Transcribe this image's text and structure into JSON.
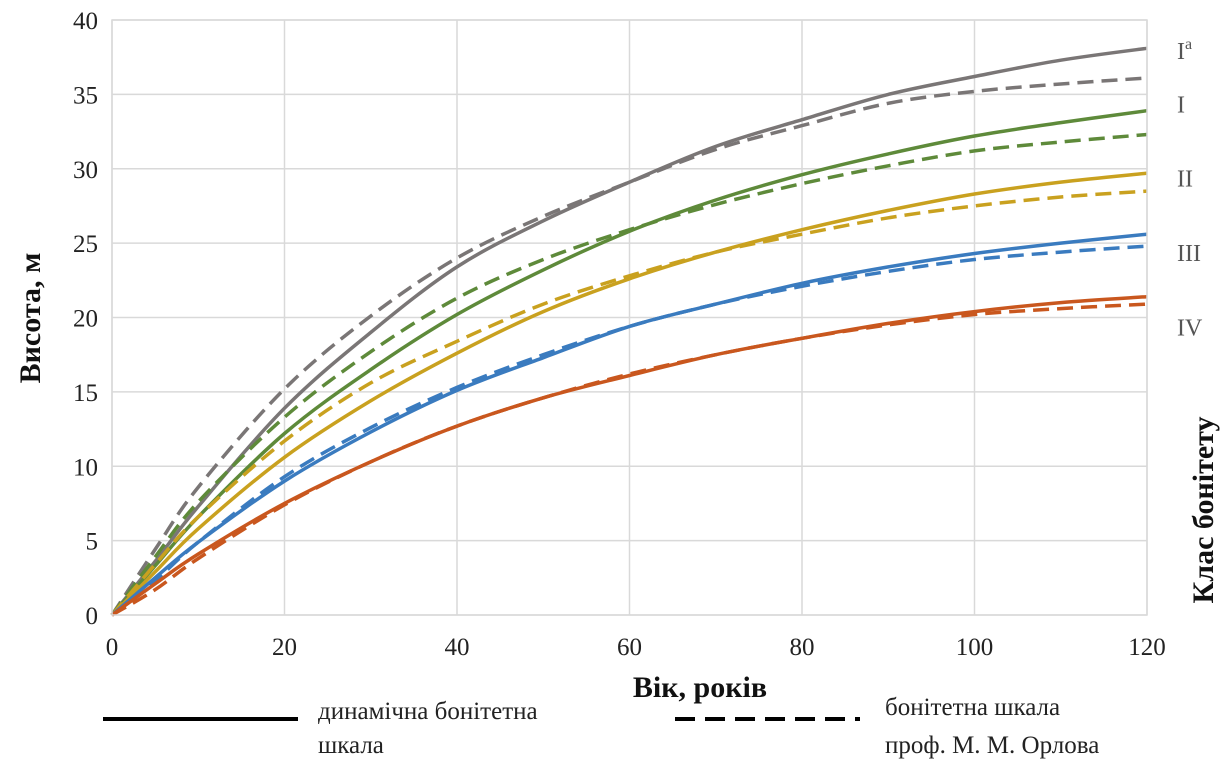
{
  "chart_data": {
    "type": "line",
    "xlabel": "Вік, років",
    "ylabel": "Висота, м",
    "y2label": "Клас бонітету",
    "xlim": [
      0,
      120
    ],
    "ylim": [
      0,
      40
    ],
    "x_ticks": [
      "0",
      "20",
      "40",
      "60",
      "80",
      "100",
      "120"
    ],
    "y_ticks": [
      "0",
      "5",
      "10",
      "15",
      "20",
      "25",
      "30",
      "35",
      "40"
    ],
    "grid": true,
    "x": [
      0,
      5,
      10,
      20,
      30,
      40,
      50,
      60,
      70,
      80,
      90,
      100,
      110,
      120
    ],
    "classes": [
      {
        "label": "I",
        "label_sup": "а",
        "color": "#7a7676",
        "label_y": 38,
        "dynamic": [
          0,
          3.6,
          7.3,
          13.9,
          19.0,
          23.4,
          26.5,
          29.1,
          31.5,
          33.3,
          35.0,
          36.2,
          37.3,
          38.1
        ],
        "orlov": [
          0,
          4.4,
          8.6,
          15.2,
          20.1,
          24.0,
          26.8,
          29.1,
          31.3,
          32.9,
          34.4,
          35.2,
          35.7,
          36.1
        ]
      },
      {
        "label": "I",
        "label_sup": "",
        "color": "#5e8a3a",
        "label_y": 34.4,
        "dynamic": [
          0,
          3.3,
          6.6,
          12.2,
          16.5,
          20.2,
          23.2,
          25.8,
          27.9,
          29.6,
          31.0,
          32.2,
          33.1,
          33.9
        ],
        "orlov": [
          0,
          3.9,
          7.6,
          13.3,
          17.7,
          21.3,
          23.9,
          25.9,
          27.6,
          29.0,
          30.2,
          31.2,
          31.8,
          32.3
        ]
      },
      {
        "label": "II",
        "label_sup": "",
        "color": "#c9a11f",
        "label_y": 29.4,
        "dynamic": [
          0,
          2.9,
          5.8,
          10.6,
          14.4,
          17.6,
          20.4,
          22.6,
          24.4,
          25.9,
          27.2,
          28.3,
          29.1,
          29.7
        ],
        "orlov": [
          0,
          3.4,
          6.6,
          11.7,
          15.6,
          18.4,
          20.9,
          22.8,
          24.4,
          25.6,
          26.7,
          27.5,
          28.1,
          28.5
        ]
      },
      {
        "label": "III",
        "label_sup": "",
        "color": "#3a7bbf",
        "label_y": 24.4,
        "dynamic": [
          0,
          2.5,
          4.9,
          9.0,
          12.3,
          15.1,
          17.3,
          19.4,
          20.9,
          22.3,
          23.4,
          24.3,
          25.0,
          25.6
        ],
        "orlov": [
          0,
          2.3,
          4.9,
          9.3,
          12.6,
          15.3,
          17.5,
          19.4,
          20.9,
          22.1,
          23.1,
          23.9,
          24.4,
          24.8
        ]
      },
      {
        "label": "IV",
        "label_sup": "",
        "color": "#c9571e",
        "label_y": 19.4,
        "dynamic": [
          0,
          2.1,
          4.1,
          7.5,
          10.3,
          12.7,
          14.6,
          16.1,
          17.5,
          18.6,
          19.6,
          20.4,
          21.0,
          21.4
        ],
        "orlov": [
          0,
          1.7,
          3.8,
          7.4,
          10.3,
          12.7,
          14.6,
          16.2,
          17.5,
          18.6,
          19.5,
          20.2,
          20.6,
          20.9
        ]
      }
    ],
    "legend": {
      "solid": [
        "динамічна бонітетна",
        "шкала"
      ],
      "dashed": [
        "бонітетна шкала",
        "проф. М. М. Орлова"
      ]
    }
  }
}
